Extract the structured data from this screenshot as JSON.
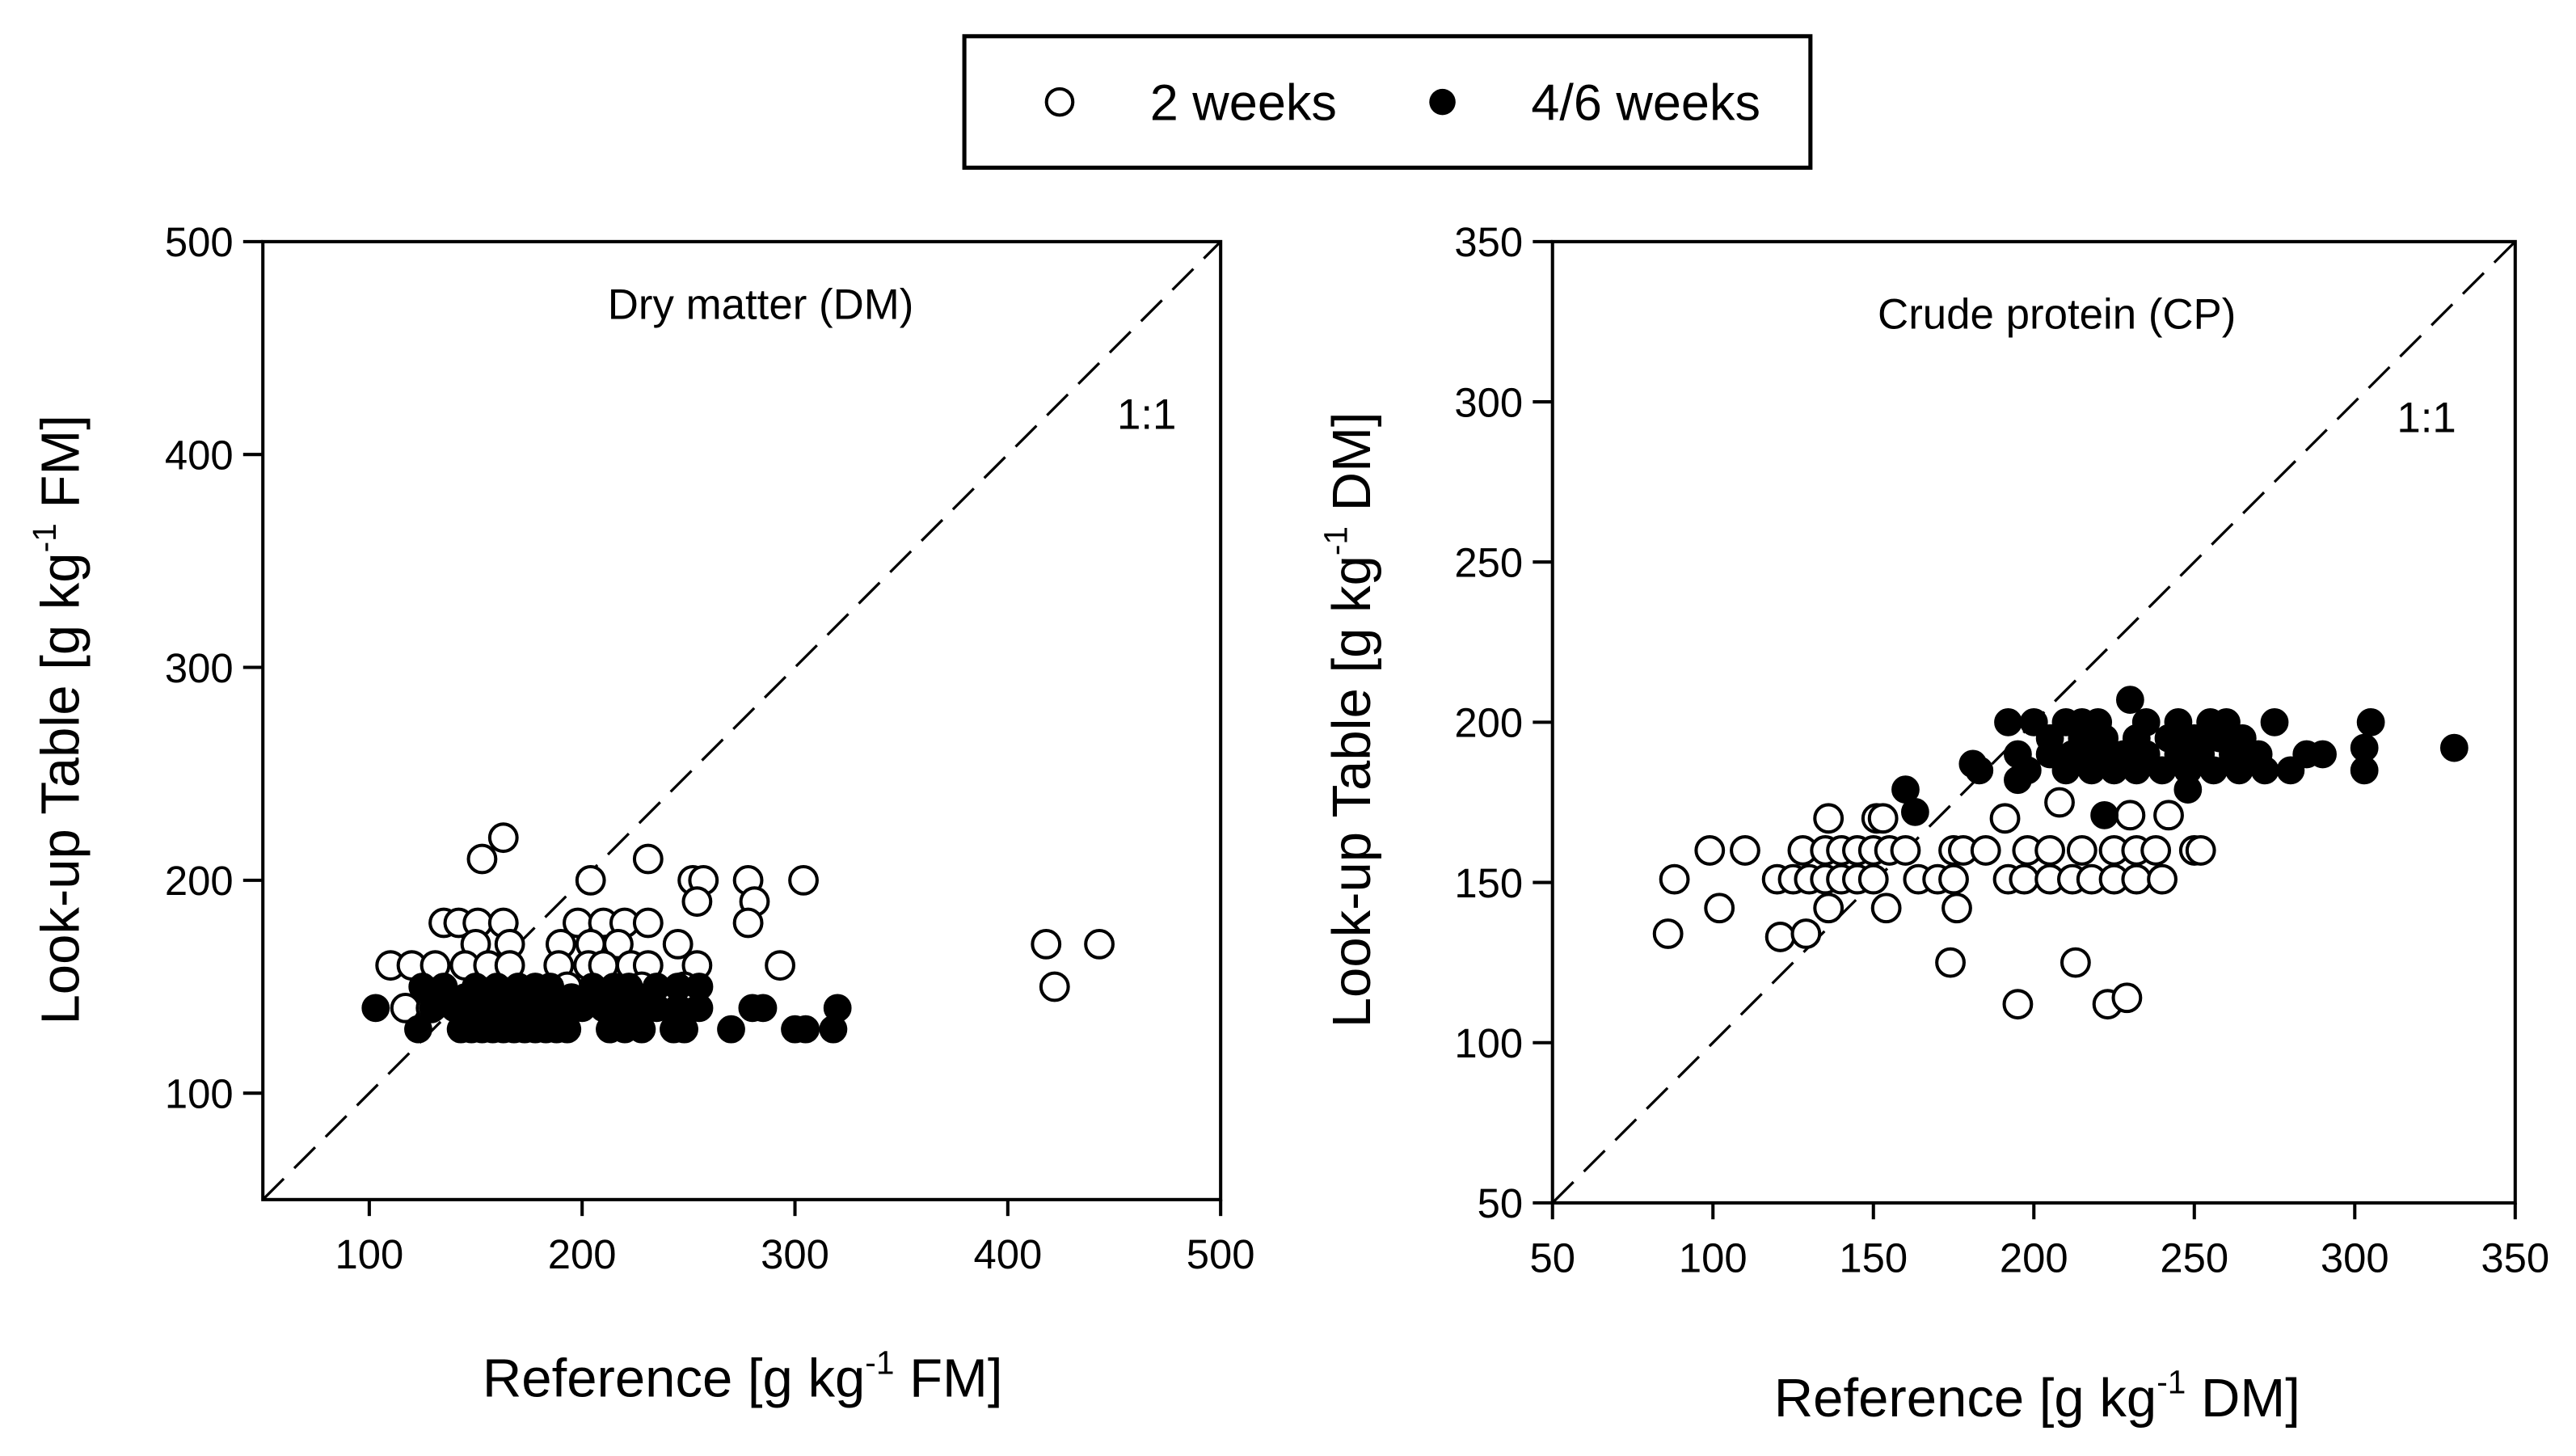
{
  "legend": {
    "position": "top-center",
    "entries": [
      {
        "label": "2 weeks",
        "marker": "open-circle"
      },
      {
        "label": "4/6 weeks",
        "marker": "filled-circle"
      }
    ]
  },
  "chart_data": [
    {
      "type": "scatter",
      "title": "Dry matter (DM)",
      "xlabel": "Reference [g kg-1 FM]",
      "xlabel_parts": [
        "Reference [g kg",
        "-1",
        " FM]"
      ],
      "ylabel": "Look-up Table [g kg-1 FM]",
      "ylabel_parts": [
        "Look-up Table [g kg",
        "-1",
        " FM]"
      ],
      "xlim": [
        50,
        500
      ],
      "ylim": [
        50,
        500
      ],
      "xticks": [
        100,
        200,
        300,
        400,
        500
      ],
      "yticks": [
        100,
        200,
        300,
        400,
        500
      ],
      "reference_line": {
        "label": "1:1",
        "style": "dashed"
      },
      "grid": false,
      "series": [
        {
          "name": "2 weeks",
          "points": [
            [
              163,
              220
            ],
            [
              153,
              210
            ],
            [
              204,
              200
            ],
            [
              231,
              210
            ],
            [
              252,
              200
            ],
            [
              257,
              200
            ],
            [
              278,
              200
            ],
            [
              304,
              200
            ],
            [
              281,
              190
            ],
            [
              254,
              190
            ],
            [
              278,
              180
            ],
            [
              135,
              180
            ],
            [
              142,
              180
            ],
            [
              151,
              180
            ],
            [
              163,
              180
            ],
            [
              198,
              180
            ],
            [
              210,
              180
            ],
            [
              220,
              180
            ],
            [
              231,
              180
            ],
            [
              150,
              170
            ],
            [
              166,
              170
            ],
            [
              190,
              170
            ],
            [
              204,
              170
            ],
            [
              217,
              170
            ],
            [
              245,
              170
            ],
            [
              110,
              160
            ],
            [
              120,
              160
            ],
            [
              131,
              160
            ],
            [
              145,
              160
            ],
            [
              156,
              160
            ],
            [
              166,
              160
            ],
            [
              189,
              160
            ],
            [
              203,
              160
            ],
            [
              210,
              160
            ],
            [
              223,
              160
            ],
            [
              231,
              160
            ],
            [
              254,
              160
            ],
            [
              293,
              160
            ],
            [
              193,
              150
            ],
            [
              228,
              150
            ],
            [
              248,
              150
            ],
            [
              117,
              140
            ],
            [
              129,
              140
            ],
            [
              418,
              170
            ],
            [
              443,
              170
            ],
            [
              422,
              150
            ]
          ]
        },
        {
          "name": "4/6 weeks",
          "points": [
            [
              103,
              140
            ],
            [
              130,
              140
            ],
            [
              140,
              140
            ],
            [
              145,
              140
            ],
            [
              150,
              140
            ],
            [
              155,
              140
            ],
            [
              160,
              140
            ],
            [
              165,
              140
            ],
            [
              170,
              140
            ],
            [
              175,
              140
            ],
            [
              180,
              140
            ],
            [
              185,
              140
            ],
            [
              190,
              140
            ],
            [
              200,
              140
            ],
            [
              210,
              140
            ],
            [
              215,
              140
            ],
            [
              225,
              140
            ],
            [
              235,
              140
            ],
            [
              245,
              140
            ],
            [
              255,
              140
            ],
            [
              280,
              140
            ],
            [
              285,
              140
            ],
            [
              320,
              140
            ],
            [
              123,
              130
            ],
            [
              143,
              130
            ],
            [
              148,
              130
            ],
            [
              153,
              130
            ],
            [
              158,
              130
            ],
            [
              163,
              130
            ],
            [
              168,
              130
            ],
            [
              173,
              130
            ],
            [
              178,
              130
            ],
            [
              183,
              130
            ],
            [
              188,
              130
            ],
            [
              193,
              130
            ],
            [
              213,
              130
            ],
            [
              220,
              130
            ],
            [
              228,
              130
            ],
            [
              243,
              130
            ],
            [
              248,
              130
            ],
            [
              270,
              130
            ],
            [
              300,
              130
            ],
            [
              305,
              130
            ],
            [
              318,
              130
            ],
            [
              125,
              150
            ],
            [
              135,
              150
            ],
            [
              150,
              150
            ],
            [
              160,
              150
            ],
            [
              170,
              150
            ],
            [
              178,
              150
            ],
            [
              185,
              150
            ],
            [
              205,
              150
            ],
            [
              215,
              150
            ],
            [
              222,
              150
            ],
            [
              235,
              150
            ],
            [
              245,
              150
            ],
            [
              255,
              150
            ],
            [
              145,
              145
            ],
            [
              165,
              145
            ],
            [
              195,
              145
            ],
            [
              230,
              145
            ]
          ]
        }
      ]
    },
    {
      "type": "scatter",
      "title": "Crude protein (CP)",
      "xlabel": "Reference [g kg-1 DM]",
      "xlabel_parts": [
        "Reference [g kg",
        "-1",
        " DM]"
      ],
      "ylabel": "Look-up Table [g kg-1 DM]",
      "ylabel_parts": [
        "Look-up Table [g kg",
        "-1",
        " DM]"
      ],
      "xlim": [
        50,
        350
      ],
      "ylim": [
        50,
        350
      ],
      "xticks": [
        50,
        100,
        150,
        200,
        250,
        300,
        350
      ],
      "yticks": [
        50,
        100,
        150,
        200,
        250,
        300,
        350
      ],
      "reference_line": {
        "label": "1:1",
        "style": "dashed"
      },
      "grid": false,
      "series": [
        {
          "name": "2 weeks",
          "points": [
            [
              86,
              134
            ],
            [
              88,
              151
            ],
            [
              99,
              160
            ],
            [
              102,
              142
            ],
            [
              110,
              160
            ],
            [
              121,
              133
            ],
            [
              129,
              134
            ],
            [
              136,
              170
            ],
            [
              151,
              170
            ],
            [
              153,
              170
            ],
            [
              136,
              142
            ],
            [
              154,
              142
            ],
            [
              176,
              142
            ],
            [
              174,
              125
            ],
            [
              213,
              125
            ],
            [
              195,
              112
            ],
            [
              223,
              112
            ],
            [
              229,
              114
            ],
            [
              208,
              175
            ],
            [
              191,
              170
            ],
            [
              230,
              171
            ],
            [
              242,
              171
            ],
            [
              164,
              151
            ],
            [
              120,
              151
            ],
            [
              125,
              151
            ],
            [
              130,
              151
            ],
            [
              135,
              151
            ],
            [
              140,
              151
            ],
            [
              145,
              151
            ],
            [
              150,
              151
            ],
            [
              170,
              151
            ],
            [
              175,
              151
            ],
            [
              192,
              151
            ],
            [
              197,
              151
            ],
            [
              205,
              151
            ],
            [
              212,
              151
            ],
            [
              218,
              151
            ],
            [
              225,
              151
            ],
            [
              232,
              151
            ],
            [
              240,
              151
            ],
            [
              128,
              160
            ],
            [
              135,
              160
            ],
            [
              140,
              160
            ],
            [
              145,
              160
            ],
            [
              150,
              160
            ],
            [
              155,
              160
            ],
            [
              160,
              160
            ],
            [
              175,
              160
            ],
            [
              178,
              160
            ],
            [
              185,
              160
            ],
            [
              198,
              160
            ],
            [
              205,
              160
            ],
            [
              215,
              160
            ],
            [
              225,
              160
            ],
            [
              232,
              160
            ],
            [
              238,
              160
            ],
            [
              250,
              160
            ],
            [
              252,
              160
            ]
          ]
        },
        {
          "name": "4/6 weeks",
          "points": [
            [
              192,
              200
            ],
            [
              200,
              200
            ],
            [
              210,
              200
            ],
            [
              215,
              200
            ],
            [
              220,
              200
            ],
            [
              235,
              200
            ],
            [
              245,
              200
            ],
            [
              255,
              200
            ],
            [
              260,
              200
            ],
            [
              275,
              200
            ],
            [
              305,
              200
            ],
            [
              205,
              195
            ],
            [
              215,
              195
            ],
            [
              222,
              195
            ],
            [
              232,
              195
            ],
            [
              242,
              195
            ],
            [
              250,
              195
            ],
            [
              258,
              195
            ],
            [
              265,
              195
            ],
            [
              195,
              190
            ],
            [
              205,
              190
            ],
            [
              212,
              190
            ],
            [
              220,
              190
            ],
            [
              228,
              190
            ],
            [
              235,
              190
            ],
            [
              245,
              190
            ],
            [
              252,
              190
            ],
            [
              262,
              190
            ],
            [
              270,
              190
            ],
            [
              285,
              190
            ],
            [
              290,
              190
            ],
            [
              303,
              192
            ],
            [
              331,
              192
            ],
            [
              183,
              185
            ],
            [
              198,
              185
            ],
            [
              210,
              185
            ],
            [
              218,
              185
            ],
            [
              225,
              185
            ],
            [
              232,
              185
            ],
            [
              240,
              185
            ],
            [
              248,
              185
            ],
            [
              256,
              185
            ],
            [
              264,
              185
            ],
            [
              272,
              185
            ],
            [
              280,
              185
            ],
            [
              303,
              185
            ],
            [
              160,
              179
            ],
            [
              163,
              172
            ],
            [
              181,
              187
            ],
            [
              230,
              207
            ],
            [
              222,
              171
            ],
            [
              248,
              179
            ],
            [
              195,
              182
            ]
          ]
        }
      ]
    }
  ]
}
